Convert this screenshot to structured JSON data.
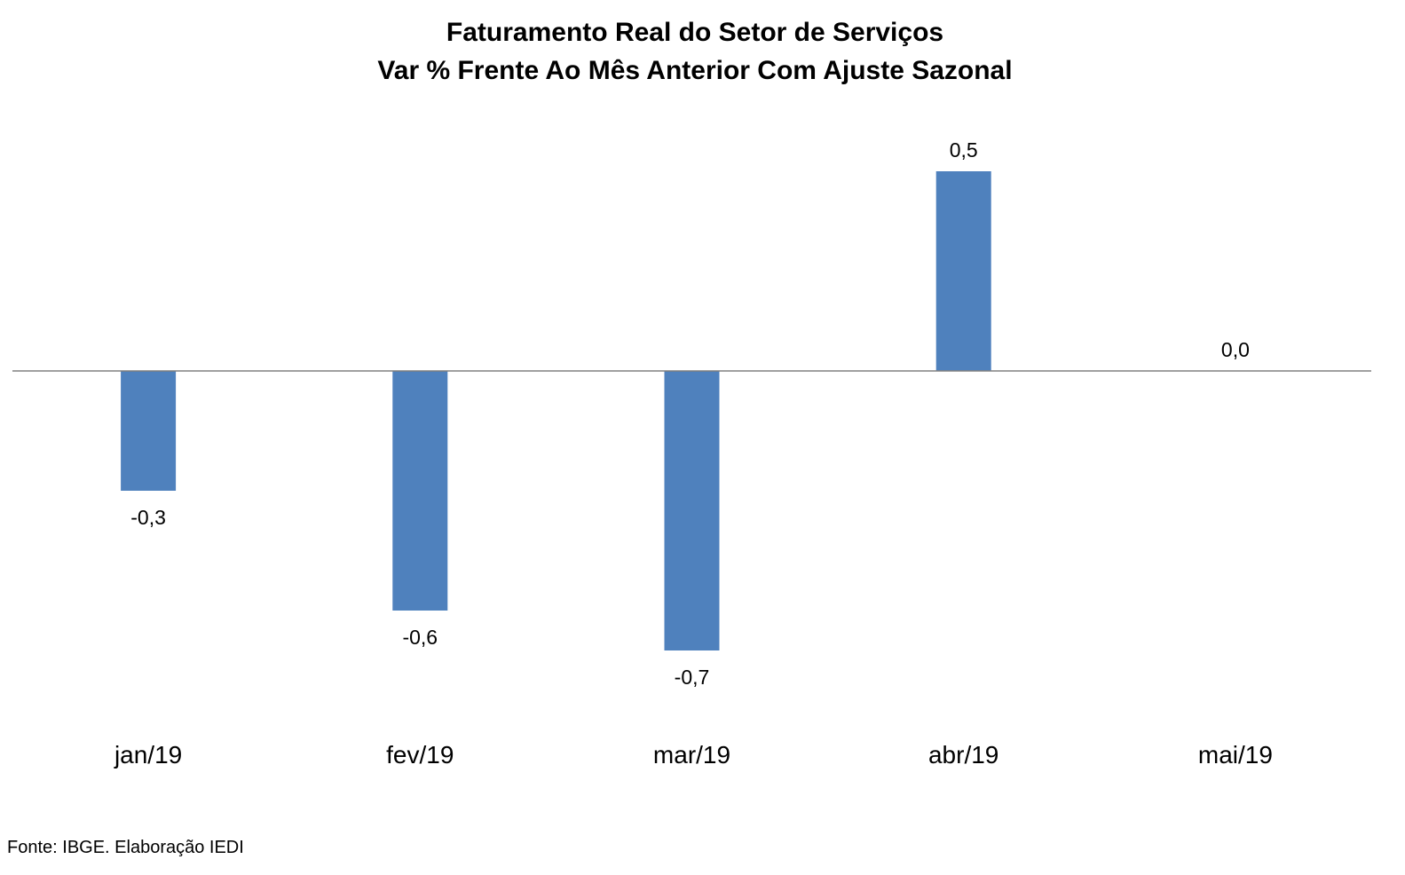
{
  "chart_data": {
    "type": "bar",
    "title": [
      "Faturamento Real do Setor de Serviços",
      "Var % Frente Ao Mês Anterior Com Ajuste Sazonal"
    ],
    "categories": [
      "jan/19",
      "fev/19",
      "mar/19",
      "abr/19",
      "mai/19"
    ],
    "values": [
      -0.3,
      -0.6,
      -0.7,
      0.5,
      0.0
    ],
    "data_labels": [
      "-0,3",
      "-0,6",
      "-0,7",
      "0,5",
      "0,0"
    ],
    "bar_color": "#4f81bd",
    "axis_color": "#808080",
    "ylim": [
      -0.9,
      0.9
    ],
    "grid": false,
    "y_axis_visible": false,
    "legend": "none"
  },
  "footer": "Fonte: IBGE. Elaboração IEDI"
}
